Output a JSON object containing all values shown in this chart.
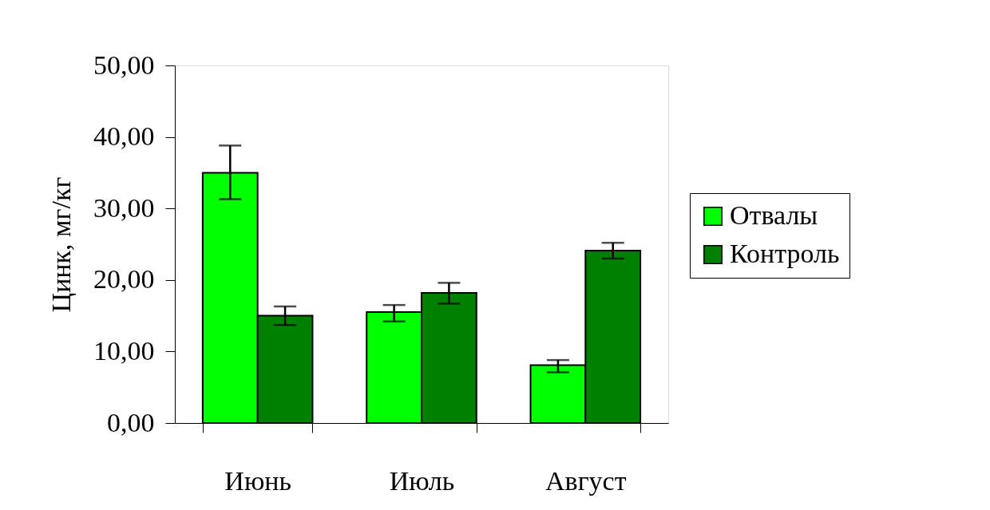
{
  "chart_data": {
    "type": "bar",
    "ylabel": "Цинк, мг/кг",
    "categories": [
      "Июнь",
      "Июль",
      "Август"
    ],
    "series": [
      {
        "name": "Отвалы",
        "color": "#00ff00",
        "values": [
          35.0,
          15.5,
          8.1
        ],
        "errors": [
          [
            31.3,
            38.8
          ],
          [
            14.2,
            16.5
          ],
          [
            7.1,
            8.8
          ]
        ]
      },
      {
        "name": "Контроль",
        "color": "#008000",
        "values": [
          15.0,
          18.2,
          24.1
        ],
        "errors": [
          [
            13.7,
            16.3
          ],
          [
            16.7,
            19.6
          ],
          [
            23.0,
            25.2
          ]
        ]
      }
    ],
    "ylim": [
      0,
      50
    ],
    "yticks": [
      {
        "value": 0,
        "label": "0,00"
      },
      {
        "value": 10,
        "label": "10,00"
      },
      {
        "value": 20,
        "label": "20,00"
      },
      {
        "value": 30,
        "label": "30,00"
      },
      {
        "value": 40,
        "label": "40,00"
      },
      {
        "value": 50,
        "label": "50,00"
      }
    ],
    "grid": false,
    "legend": "right"
  }
}
